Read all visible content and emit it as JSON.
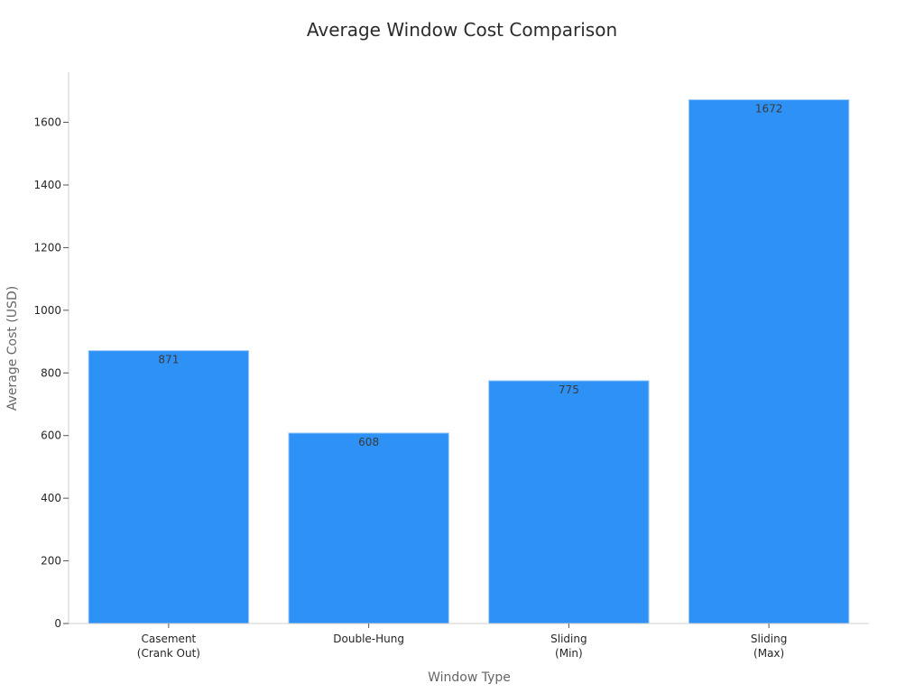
{
  "chart_data": {
    "type": "bar",
    "title": "Average Window Cost Comparison",
    "xlabel": "Window Type",
    "ylabel": "Average Cost (USD)",
    "categories": [
      [
        "Casement",
        "(Crank Out)"
      ],
      [
        "Double-Hung"
      ],
      [
        "Sliding",
        "(Min)"
      ],
      [
        "Sliding",
        "(Max)"
      ]
    ],
    "values": [
      871,
      608,
      775,
      1672
    ],
    "ylim": [
      0,
      1760
    ],
    "yticks": [
      0,
      200,
      400,
      600,
      800,
      1000,
      1200,
      1400,
      1600
    ],
    "bar_color": "#2e91f6",
    "bar_edge_color": "#9ccaf9",
    "grid": false,
    "legend": "none"
  }
}
